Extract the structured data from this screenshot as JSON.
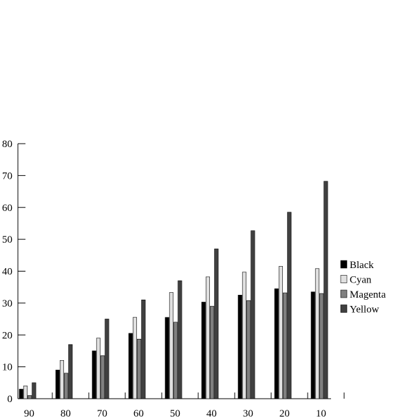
{
  "chart_data": {
    "type": "bar",
    "title": "",
    "xlabel": "",
    "ylabel": "",
    "categories": [
      "90",
      "80",
      "70",
      "60",
      "50",
      "40",
      "30",
      "20",
      "10"
    ],
    "ylim": [
      0,
      80
    ],
    "yticks": [
      0,
      10,
      20,
      30,
      40,
      50,
      60,
      70,
      80
    ],
    "grid": false,
    "legend_position": "right",
    "series": [
      {
        "name": "Black",
        "color": "#000000",
        "values": [
          3,
          9,
          15,
          20.5,
          25.5,
          30.3,
          32.5,
          34.5,
          33.5
        ]
      },
      {
        "name": "Cyan",
        "color": "#e0e0e0",
        "values": [
          4,
          12,
          19,
          25.5,
          33.3,
          38.2,
          39.7,
          41.5,
          40.8
        ]
      },
      {
        "name": "Magenta",
        "color": "#808080",
        "values": [
          1,
          8,
          13.5,
          18.7,
          24,
          29,
          30.8,
          33.2,
          33
        ]
      },
      {
        "name": "Yellow",
        "color": "#404040",
        "values": [
          5,
          17,
          25,
          31,
          37,
          47,
          52.7,
          58.5,
          68.2
        ]
      }
    ]
  }
}
